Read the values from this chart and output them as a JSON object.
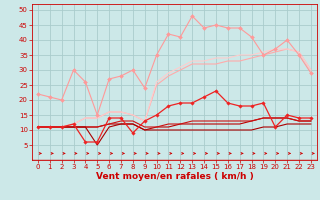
{
  "xlabel": "Vent moyen/en rafales ( km/h )",
  "xlim": [
    -0.5,
    23.5
  ],
  "ylim": [
    0,
    52
  ],
  "yticks": [
    5,
    10,
    15,
    20,
    25,
    30,
    35,
    40,
    45,
    50
  ],
  "xticks": [
    0,
    1,
    2,
    3,
    4,
    5,
    6,
    7,
    8,
    9,
    10,
    11,
    12,
    13,
    14,
    15,
    16,
    17,
    18,
    19,
    20,
    21,
    22,
    23
  ],
  "bg_color": "#cce8e8",
  "grid_color": "#aacccc",
  "series": [
    {
      "color": "#ff9999",
      "lw": 0.8,
      "marker": "D",
      "ms": 2.0,
      "data": [
        [
          0,
          22
        ],
        [
          1,
          21
        ],
        [
          2,
          20
        ],
        [
          3,
          30
        ],
        [
          4,
          26
        ],
        [
          5,
          15
        ],
        [
          6,
          27
        ],
        [
          7,
          28
        ],
        [
          8,
          30
        ],
        [
          9,
          24
        ],
        [
          10,
          35
        ],
        [
          11,
          42
        ],
        [
          12,
          41
        ],
        [
          13,
          48
        ],
        [
          14,
          44
        ],
        [
          15,
          45
        ],
        [
          16,
          44
        ],
        [
          17,
          44
        ],
        [
          18,
          41
        ],
        [
          19,
          35
        ],
        [
          20,
          37
        ],
        [
          21,
          40
        ],
        [
          22,
          35
        ],
        [
          23,
          29
        ]
      ]
    },
    {
      "color": "#ffaaaa",
      "lw": 0.8,
      "marker": null,
      "ms": 0,
      "data": [
        [
          0,
          11
        ],
        [
          1,
          11
        ],
        [
          2,
          11
        ],
        [
          3,
          12
        ],
        [
          4,
          14
        ],
        [
          5,
          14
        ],
        [
          6,
          16
        ],
        [
          7,
          16
        ],
        [
          8,
          15
        ],
        [
          9,
          13
        ],
        [
          10,
          25
        ],
        [
          11,
          28
        ],
        [
          12,
          30
        ],
        [
          13,
          32
        ],
        [
          14,
          32
        ],
        [
          15,
          32
        ],
        [
          16,
          33
        ],
        [
          17,
          33
        ],
        [
          18,
          34
        ],
        [
          19,
          35
        ],
        [
          20,
          36
        ],
        [
          21,
          37
        ],
        [
          22,
          36
        ],
        [
          23,
          30
        ]
      ]
    },
    {
      "color": "#ffcccc",
      "lw": 0.8,
      "marker": null,
      "ms": 0,
      "data": [
        [
          0,
          11
        ],
        [
          1,
          11
        ],
        [
          2,
          11
        ],
        [
          3,
          12
        ],
        [
          4,
          14
        ],
        [
          5,
          14
        ],
        [
          6,
          16
        ],
        [
          7,
          16
        ],
        [
          8,
          15
        ],
        [
          9,
          13
        ],
        [
          10,
          26
        ],
        [
          11,
          29
        ],
        [
          12,
          31
        ],
        [
          13,
          33
        ],
        [
          14,
          33
        ],
        [
          15,
          34
        ],
        [
          16,
          34
        ],
        [
          17,
          35
        ],
        [
          18,
          35
        ],
        [
          19,
          36
        ],
        [
          20,
          37
        ],
        [
          21,
          37
        ],
        [
          22,
          36
        ],
        [
          23,
          30
        ]
      ]
    },
    {
      "color": "#ee2222",
      "lw": 0.9,
      "marker": "D",
      "ms": 1.8,
      "data": [
        [
          0,
          11
        ],
        [
          1,
          11
        ],
        [
          2,
          11
        ],
        [
          3,
          12
        ],
        [
          4,
          6
        ],
        [
          5,
          6
        ],
        [
          6,
          14
        ],
        [
          7,
          14
        ],
        [
          8,
          9
        ],
        [
          9,
          13
        ],
        [
          10,
          15
        ],
        [
          11,
          18
        ],
        [
          12,
          19
        ],
        [
          13,
          19
        ],
        [
          14,
          21
        ],
        [
          15,
          23
        ],
        [
          16,
          19
        ],
        [
          17,
          18
        ],
        [
          18,
          18
        ],
        [
          19,
          19
        ],
        [
          20,
          11
        ],
        [
          21,
          15
        ],
        [
          22,
          14
        ],
        [
          23,
          14
        ]
      ]
    },
    {
      "color": "#bb0000",
      "lw": 0.8,
      "marker": null,
      "ms": 0,
      "data": [
        [
          0,
          11
        ],
        [
          1,
          11
        ],
        [
          2,
          11
        ],
        [
          3,
          11
        ],
        [
          4,
          11
        ],
        [
          5,
          11
        ],
        [
          6,
          12
        ],
        [
          7,
          12
        ],
        [
          8,
          12
        ],
        [
          9,
          10
        ],
        [
          10,
          11
        ],
        [
          11,
          11
        ],
        [
          12,
          12
        ],
        [
          13,
          12
        ],
        [
          14,
          12
        ],
        [
          15,
          12
        ],
        [
          16,
          12
        ],
        [
          17,
          12
        ],
        [
          18,
          13
        ],
        [
          19,
          14
        ],
        [
          20,
          14
        ],
        [
          21,
          14
        ],
        [
          22,
          13
        ],
        [
          23,
          13
        ]
      ]
    },
    {
      "color": "#cc1111",
      "lw": 0.8,
      "marker": null,
      "ms": 0,
      "data": [
        [
          0,
          11
        ],
        [
          1,
          11
        ],
        [
          2,
          11
        ],
        [
          3,
          11
        ],
        [
          4,
          11
        ],
        [
          5,
          11
        ],
        [
          6,
          12
        ],
        [
          7,
          13
        ],
        [
          8,
          13
        ],
        [
          9,
          11
        ],
        [
          10,
          11
        ],
        [
          11,
          12
        ],
        [
          12,
          12
        ],
        [
          13,
          13
        ],
        [
          14,
          13
        ],
        [
          15,
          13
        ],
        [
          16,
          13
        ],
        [
          17,
          13
        ],
        [
          18,
          13
        ],
        [
          19,
          14
        ],
        [
          20,
          14
        ],
        [
          21,
          14
        ],
        [
          22,
          13
        ],
        [
          23,
          13
        ]
      ]
    },
    {
      "color": "#aa0000",
      "lw": 0.8,
      "marker": null,
      "ms": 0,
      "data": [
        [
          0,
          11
        ],
        [
          1,
          11
        ],
        [
          2,
          11
        ],
        [
          3,
          11
        ],
        [
          4,
          11
        ],
        [
          5,
          5
        ],
        [
          6,
          11
        ],
        [
          7,
          12
        ],
        [
          8,
          12
        ],
        [
          9,
          10
        ],
        [
          10,
          10
        ],
        [
          11,
          10
        ],
        [
          12,
          10
        ],
        [
          13,
          10
        ],
        [
          14,
          10
        ],
        [
          15,
          10
        ],
        [
          16,
          10
        ],
        [
          17,
          10
        ],
        [
          18,
          10
        ],
        [
          19,
          11
        ],
        [
          20,
          11
        ],
        [
          21,
          12
        ],
        [
          22,
          12
        ],
        [
          23,
          12
        ]
      ]
    }
  ],
  "tick_fontsize": 5.0,
  "label_fontsize": 6.5,
  "tick_color": "#cc0000",
  "label_color": "#cc0000",
  "arrow_color": "#cc0000",
  "hline_color": "#cc0000"
}
